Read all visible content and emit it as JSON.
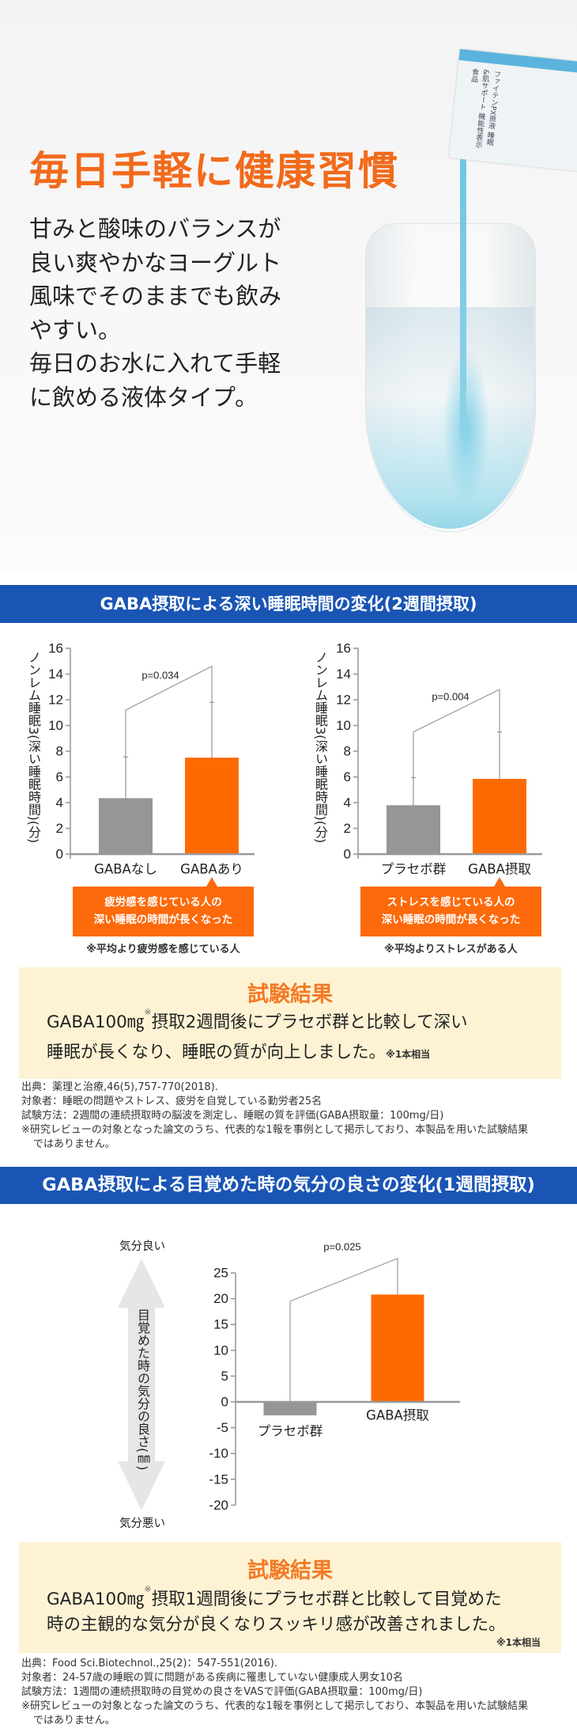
{
  "hero": {
    "title": "毎日手軽に健康習慣",
    "body": [
      "甘みと酸味のバランスが",
      "良い爽やかなヨーグルト",
      "風味でそのままでも飲み",
      "やすい。",
      "毎日のお水に入れて手軽",
      "に飲める液体タイプ。"
    ],
    "packet_text": "ファイテンPX原液 睡眠&肌サポート 機能性表示食品"
  },
  "section1": {
    "banner": "GABA摂取による深い睡眠時間の変化(2週間摂取)",
    "ylabel": "ノンレム睡眠3(深い睡眠時間)(分)",
    "callouts": [
      {
        "lines": [
          "疲労感を感じている人の",
          "深い睡眠の時間が長くなった"
        ],
        "note": "※平均より疲労感を感じている人"
      },
      {
        "lines": [
          "ストレスを感じている人の",
          "深い睡眠の時間が長くなった"
        ],
        "note": "※平均よりストレスがある人"
      }
    ],
    "result": {
      "title": "試験結果",
      "line1_a": "GABA100㎎",
      "line1_sup": "※",
      "line1_b": "摂取2週間後にプラセボ群と比較して深い",
      "line2": "睡眠が長くなり、睡眠の質が向上しました。",
      "note": "※1本相当"
    },
    "sources": [
      "出典：薬理と治療,46(5),757-770(2018).",
      "対象者：睡眠の問題やストレス、疲労を自覚している勤労者25名",
      "試験方法：2週間の連続摂取時の脳波を測定し、睡眠の質を評価(GABA摂取量：100mg/日)",
      "※研究レビューの対象となった論文のうち、代表的な1報を事例として掲示しており、本製品を用いた試験結果",
      "ではありません。"
    ]
  },
  "section2": {
    "banner": "GABA摂取による目覚めた時の気分の良さの変化(1週間摂取)",
    "ylabel": "目覚めた時の気分の良さ(㎜)",
    "mood_top": "気分良い",
    "mood_bottom": "気分悪い",
    "result": {
      "title": "試験結果",
      "line1_a": "GABA100㎎",
      "line1_sup": "※",
      "line1_b": "摂取1週間後にプラセボ群と比較して目覚めた",
      "line2": "時の主観的な気分が良くなりスッキリ感が改善されました。",
      "note": "※1本相当"
    },
    "sources": [
      "出典：Food Sci.Biotechnol.,25(2)：547-551(2016).",
      "対象者：24-57歳の睡眠の質に問題がある疾病に罹患していない健康成人男女10名",
      "試験方法：1週間の連続摂取時の目覚めの良さをVASで評価(GABA摂取量：100mg/日)",
      "※研究レビューの対象となった論文のうち、代表的な1報を事例として掲示しており、本製品を用いた試験結果",
      "ではありません。"
    ]
  },
  "colors": {
    "brand_blue": "#1a55b5",
    "accent_orange": "#ff6a00",
    "control_gray": "#969696",
    "result_bg": "#fdf3d4"
  },
  "chart_data": [
    {
      "type": "bar",
      "categories": [
        "GABAなし",
        "GABAあり"
      ],
      "values": [
        4.35,
        7.5
      ],
      "error_upper": [
        7.55,
        11.8
      ],
      "bracket": [
        11.2,
        14.6
      ],
      "p_label": "p=0.034",
      "ylabel": "ノンレム睡眠3(深い睡眠時間)(分)",
      "ylim": [
        0,
        16
      ],
      "ytick_step": 2,
      "bar_colors": [
        "#969696",
        "#ff6a00"
      ],
      "grid": false
    },
    {
      "type": "bar",
      "categories": [
        "プラセボ群",
        "GABA摂取"
      ],
      "values": [
        3.8,
        5.85
      ],
      "error_upper": [
        5.95,
        9.5
      ],
      "bracket": [
        9.5,
        12.8
      ],
      "p_label": "p=0.004",
      "ylabel": "ノンレム睡眠3(深い睡眠時間)(分)",
      "ylim": [
        0,
        16
      ],
      "ytick_step": 2,
      "bar_colors": [
        "#969696",
        "#ff6a00"
      ],
      "grid": false
    },
    {
      "type": "bar",
      "categories": [
        "プラセボ群",
        "GABA摂取"
      ],
      "values": [
        -2.6,
        20.8
      ],
      "error_upper": null,
      "bracket": [
        19.5,
        27.8
      ],
      "p_label": "p=0.025",
      "ylabel": "目覚めた時の気分の良さ(㎜)",
      "ylim": [
        -20,
        25
      ],
      "ytick_step": 5,
      "bar_colors": [
        "#969696",
        "#ff6a00"
      ],
      "grid": false
    }
  ]
}
